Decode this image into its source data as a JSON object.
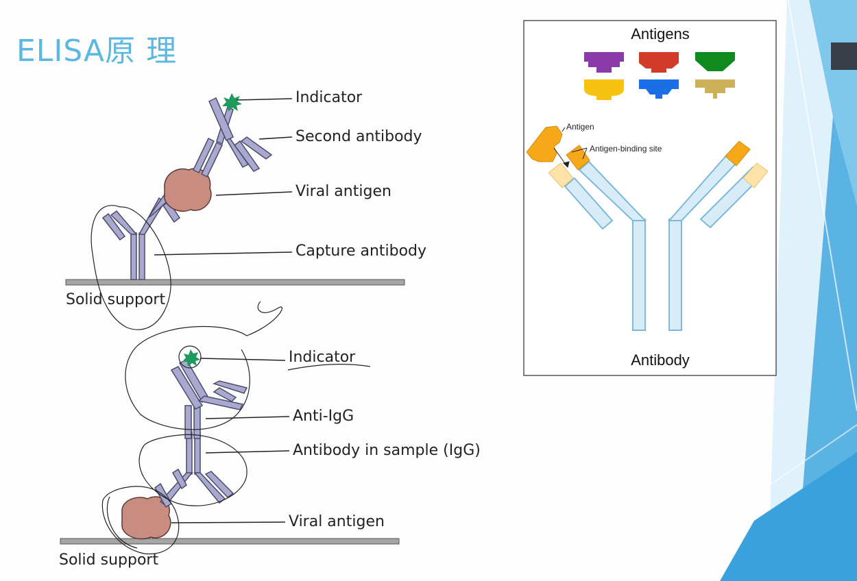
{
  "slide": {
    "title": "ELISA原 理"
  },
  "diagram_top": {
    "labels": {
      "indicator": "Indicator",
      "second_antibody": "Second antibody",
      "viral_antigen": "Viral antigen",
      "capture_antibody": "Capture antibody",
      "solid_support": "Solid support"
    }
  },
  "diagram_bottom": {
    "labels": {
      "indicator": "Indicator",
      "anti_igg": "Anti-IgG",
      "antibody_in_sample": "Antibody in sample (IgG)",
      "viral_antigen": "Viral antigen",
      "solid_support": "Solid support"
    }
  },
  "inset": {
    "antigens_title": "Antigens",
    "antigen_label": "Antigen",
    "binding_site_label": "Antigen-binding site",
    "antibody_label": "Antibody",
    "antigen_colors": [
      "#8a3aa8",
      "#d23a2a",
      "#0f8a1e",
      "#f8c210",
      "#1a6ee6",
      "#cdb05a"
    ]
  },
  "colors": {
    "title": "#5bb8e0",
    "antibody": "#a9a9cf",
    "antibody_outline": "#4a4a6a",
    "antigen_blob": "#c98c80",
    "indicator": "#1e9a5e",
    "inset_antibody": "#d8ecf8",
    "inset_antibody_outline": "#7bb8dc",
    "inset_antigen": "#f5a818",
    "inset_antigen_light": "#fde3a8"
  }
}
